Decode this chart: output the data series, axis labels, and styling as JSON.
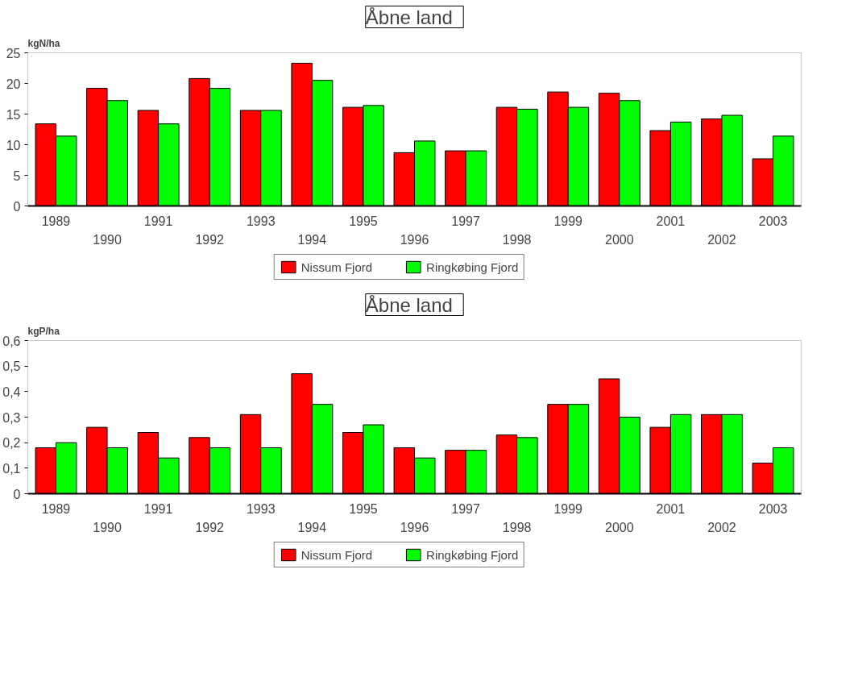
{
  "chart_data": [
    {
      "type": "bar",
      "title": "Åbne land",
      "ylabel": "kgN/ha",
      "categories": [
        "1989",
        "1990",
        "1991",
        "1992",
        "1993",
        "1994",
        "1995",
        "1996",
        "1997",
        "1998",
        "1999",
        "2000",
        "2001",
        "2002",
        "2003"
      ],
      "series": [
        {
          "name": "Nissum Fjord",
          "color": "#ff0000",
          "values": [
            13.4,
            19.2,
            15.6,
            20.8,
            15.6,
            23.3,
            16.1,
            8.7,
            9.0,
            16.1,
            18.6,
            18.4,
            12.3,
            14.2,
            7.7
          ]
        },
        {
          "name": "Ringkøbing Fjord",
          "color": "#00ff00",
          "values": [
            11.4,
            17.2,
            13.4,
            19.2,
            15.6,
            20.5,
            16.4,
            10.6,
            9.0,
            15.8,
            16.1,
            17.2,
            13.7,
            14.8,
            11.4
          ]
        }
      ],
      "ylim": [
        0,
        25
      ],
      "yticks": [
        0,
        5,
        10,
        15,
        20,
        25
      ],
      "legend": "bottom"
    },
    {
      "type": "bar",
      "title": "Åbne land",
      "ylabel": "kgP/ha",
      "categories": [
        "1989",
        "1990",
        "1991",
        "1992",
        "1993",
        "1994",
        "1995",
        "1996",
        "1997",
        "1998",
        "1999",
        "2000",
        "2001",
        "2002",
        "2003"
      ],
      "series": [
        {
          "name": "Nissum Fjord",
          "color": "#ff0000",
          "values": [
            0.18,
            0.26,
            0.24,
            0.22,
            0.31,
            0.47,
            0.24,
            0.18,
            0.17,
            0.23,
            0.35,
            0.45,
            0.26,
            0.31,
            0.12
          ]
        },
        {
          "name": "Ringkøbing Fjord",
          "color": "#00ff00",
          "values": [
            0.2,
            0.18,
            0.14,
            0.18,
            0.18,
            0.35,
            0.27,
            0.14,
            0.17,
            0.22,
            0.35,
            0.3,
            0.31,
            0.31,
            0.18
          ]
        }
      ],
      "ylim": [
        0,
        0.6
      ],
      "yticks": [
        0,
        {
          "value": 0.1,
          "label": "0,1"
        },
        {
          "value": 0.2,
          "label": "0,2"
        },
        {
          "value": 0.3,
          "label": "0,3"
        },
        {
          "value": 0.4,
          "label": "0,4"
        },
        {
          "value": 0.5,
          "label": "0,5"
        },
        {
          "value": 0.6,
          "label": "0,6"
        }
      ],
      "legend": "bottom"
    }
  ]
}
